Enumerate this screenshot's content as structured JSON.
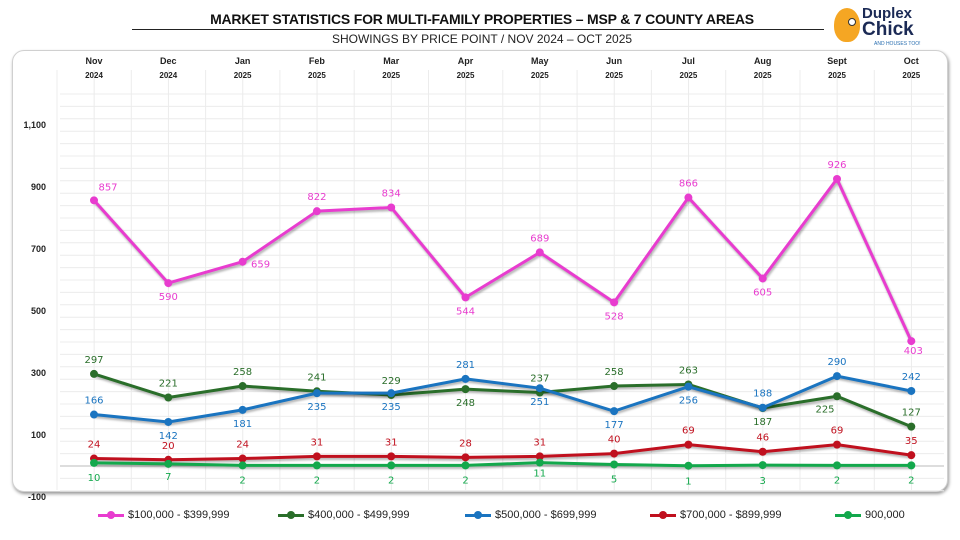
{
  "title": "MARKET STATISTICS FOR MULTI-FAMILY PROPERTIES  – MSP & 7 COUNTY AREAS",
  "subtitle": "SHOWINGS BY PRICE POINT / NOV 2024 – OCT 2025",
  "logo": {
    "line1": "Duplex",
    "line2": "Chick",
    "tagline": "AND HOUSES TOO!"
  },
  "chart_data": {
    "type": "line",
    "title": "MARKET STATISTICS FOR MULTI-FAMILY PROPERTIES  – MSP & 7 COUNTY AREAS",
    "subtitle": "SHOWINGS BY PRICE POINT / NOV 2024 – OCT 2025",
    "categories": [
      {
        "month": "Nov",
        "year": "2024"
      },
      {
        "month": "Dec",
        "year": "2024"
      },
      {
        "month": "Jan",
        "year": "2025"
      },
      {
        "month": "Feb",
        "year": "2025"
      },
      {
        "month": "Mar",
        "year": "2025"
      },
      {
        "month": "Apr",
        "year": "2025"
      },
      {
        "month": "May",
        "year": "2025"
      },
      {
        "month": "Jun",
        "year": "2025"
      },
      {
        "month": "Jul",
        "year": "2025"
      },
      {
        "month": "Aug",
        "year": "2025"
      },
      {
        "month": "Sept",
        "year": "2025"
      },
      {
        "month": "Oct",
        "year": "2025"
      }
    ],
    "ylim": [
      -100,
      1200
    ],
    "yticks": [
      -100,
      100,
      300,
      500,
      700,
      900,
      1100
    ],
    "ytick_labels": [
      "-100",
      "100",
      "300",
      "500",
      "700",
      "900",
      "1,100"
    ],
    "grid": true,
    "legend_placement": "bottom",
    "series": [
      {
        "name": "$100,000 - $399,999",
        "color": "#e83ccf",
        "values": [
          857,
          590,
          659,
          822,
          834,
          544,
          689,
          528,
          866,
          605,
          926,
          403
        ]
      },
      {
        "name": "$400,000 - $499,999",
        "color": "#2a6e2a",
        "values": [
          297,
          221,
          258,
          241,
          229,
          248,
          237,
          258,
          263,
          187,
          225,
          127
        ]
      },
      {
        "name": "$500,000 - $699,999",
        "color": "#1a74c0",
        "values": [
          166,
          142,
          181,
          235,
          235,
          281,
          251,
          177,
          256,
          188,
          290,
          242
        ]
      },
      {
        "name": "$700,000 - $899,999",
        "color": "#c0101e",
        "values": [
          24,
          20,
          24,
          31,
          31,
          28,
          31,
          40,
          69,
          46,
          69,
          35
        ]
      },
      {
        "name": "900,000",
        "color": "#13a84c",
        "values": [
          10,
          7,
          2,
          2,
          2,
          2,
          11,
          5,
          1,
          3,
          2,
          2
        ]
      }
    ]
  }
}
